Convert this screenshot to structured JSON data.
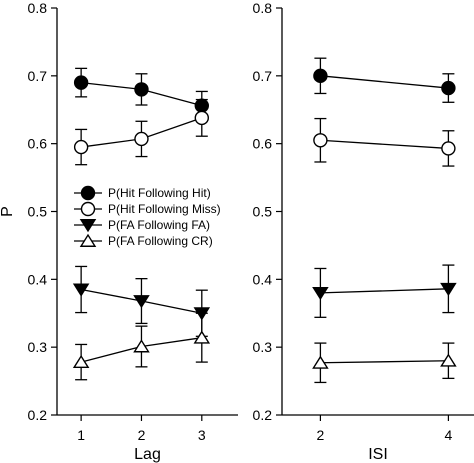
{
  "chart_data": [
    {
      "type": "line",
      "xlabel": "Lag",
      "ylabel": "P",
      "x": [
        1,
        2,
        3
      ],
      "xticks": [
        "1",
        "2",
        "3"
      ],
      "xlim": [
        0.6,
        3.6
      ],
      "ylim": [
        0.2,
        0.8
      ],
      "yticks": [
        "0.2",
        "0.3",
        "0.4",
        "0.5",
        "0.6",
        "0.7",
        "0.8"
      ],
      "legend_position": "center-left",
      "series": [
        {
          "name": "P(Hit Following Hit)",
          "marker": "filled-circle",
          "values": [
            0.69,
            0.68,
            0.656
          ],
          "errors": [
            0.021,
            0.023,
            0.021
          ]
        },
        {
          "name": "P(Hit Following Miss)",
          "marker": "open-circle",
          "values": [
            0.595,
            0.607,
            0.638
          ],
          "errors": [
            0.026,
            0.026,
            0.027
          ]
        },
        {
          "name": "P(FA Following FA)",
          "marker": "filled-triangle",
          "values": [
            0.385,
            0.368,
            0.35
          ],
          "errors": [
            0.034,
            0.033,
            0.034
          ]
        },
        {
          "name": "P(FA Following CR)",
          "marker": "open-triangle",
          "values": [
            0.278,
            0.301,
            0.314
          ],
          "errors": [
            0.026,
            0.03,
            0.036
          ]
        }
      ]
    },
    {
      "type": "line",
      "xlabel": "ISI",
      "ylabel": "",
      "x": [
        2,
        4
      ],
      "xticks": [
        "2",
        "4"
      ],
      "xlim": [
        1.4,
        4.4
      ],
      "ylim": [
        0.2,
        0.8
      ],
      "yticks": [
        "0.2",
        "0.3",
        "0.4",
        "0.5",
        "0.6",
        "0.7",
        "0.8"
      ],
      "series": [
        {
          "name": "P(Hit Following Hit)",
          "marker": "filled-circle",
          "values": [
            0.7,
            0.682
          ],
          "errors": [
            0.026,
            0.021
          ]
        },
        {
          "name": "P(Hit Following Miss)",
          "marker": "open-circle",
          "values": [
            0.605,
            0.593
          ],
          "errors": [
            0.032,
            0.026
          ]
        },
        {
          "name": "P(FA Following FA)",
          "marker": "filled-triangle",
          "values": [
            0.38,
            0.386
          ],
          "errors": [
            0.036,
            0.035
          ]
        },
        {
          "name": "P(FA Following CR)",
          "marker": "open-triangle",
          "values": [
            0.277,
            0.28
          ],
          "errors": [
            0.029,
            0.026
          ]
        }
      ]
    }
  ]
}
